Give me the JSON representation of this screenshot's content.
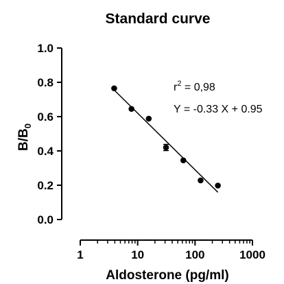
{
  "chart_data": {
    "type": "scatter",
    "title": "Standard curve",
    "xlabel": "Aldosterone (pg/ml)",
    "ylabel_main": "B/B",
    "ylabel_sub": "0",
    "x_scale": "log",
    "xlim": [
      1,
      1000
    ],
    "ylim": [
      0,
      1.0
    ],
    "x_ticks": [
      1,
      10,
      100,
      1000
    ],
    "x_tick_labels": [
      "1",
      "10",
      "100",
      "1000"
    ],
    "y_ticks": [
      0.0,
      0.2,
      0.4,
      0.6,
      0.8,
      1.0
    ],
    "y_tick_labels": [
      "0.0",
      "0.2",
      "0.4",
      "0.6",
      "0.8",
      "1.0"
    ],
    "grid": false,
    "points": [
      {
        "x": 3.9,
        "y": 0.765
      },
      {
        "x": 7.8,
        "y": 0.645
      },
      {
        "x": 15.6,
        "y": 0.588
      },
      {
        "x": 31.2,
        "y": 0.42,
        "err": 0.018
      },
      {
        "x": 62.5,
        "y": 0.345
      },
      {
        "x": 125,
        "y": 0.228
      },
      {
        "x": 250,
        "y": 0.198
      }
    ],
    "fit": {
      "slope": -0.33,
      "intercept": 0.95,
      "x_range": [
        3.9,
        250
      ]
    },
    "annotations": {
      "r2_prefix": "r",
      "r2_sup": "2",
      "r2_value": " = 0,98",
      "equation": "Y = -0.33 X + 0.95"
    }
  }
}
